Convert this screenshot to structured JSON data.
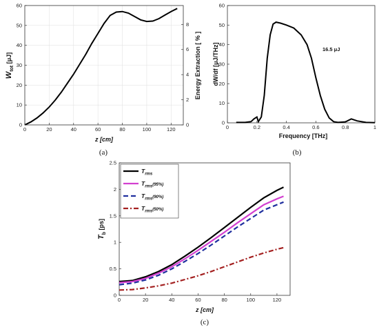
{
  "chart_data": [
    {
      "type": "line",
      "panel_label": "(a)",
      "xlabel": "z  [cm]",
      "ylabel": "W_tot [μJ]",
      "ylabel_main": "W",
      "ylabel_sub": "tot",
      "ylabel_unit": "[μJ]",
      "y2label": "Energy Extraction  [ % ]",
      "xlim": [
        0,
        130
      ],
      "ylim": [
        0,
        60
      ],
      "y2lim": [
        0,
        9.5
      ],
      "xticks": [
        "0",
        "20",
        "40",
        "60",
        "80",
        "100",
        "120"
      ],
      "yticks": [
        "0",
        "10",
        "20",
        "30",
        "40",
        "50",
        "60"
      ],
      "y2ticks": [
        "0",
        "2",
        "4",
        "6",
        "8"
      ],
      "grid": true,
      "series": [
        {
          "color": "#000000",
          "x": [
            0,
            5,
            10,
            15,
            20,
            25,
            30,
            35,
            40,
            45,
            50,
            55,
            60,
            65,
            70,
            75,
            80,
            85,
            90,
            95,
            100,
            105,
            110,
            115,
            120,
            125
          ],
          "values": [
            0,
            1.5,
            3.5,
            6,
            9,
            12.5,
            16.5,
            21,
            25.5,
            30.5,
            35.5,
            41,
            46,
            51,
            55,
            56.7,
            57,
            56.2,
            54.5,
            52.8,
            52,
            52.2,
            53.4,
            55.2,
            57,
            58.5
          ]
        }
      ]
    },
    {
      "type": "line",
      "panel_label": "(b)",
      "xlabel": "Frequency [THz]",
      "ylabel": "dW/df [μJ/THz]",
      "annotation": "16.5 μJ",
      "xlim": [
        0,
        1
      ],
      "ylim": [
        0,
        60
      ],
      "xticks": [
        "0",
        "0.2",
        "0.4",
        "0.6",
        "0.8",
        "1"
      ],
      "yticks": [
        "0",
        "10",
        "20",
        "30",
        "40",
        "50",
        "60"
      ],
      "grid": false,
      "series": [
        {
          "color": "#000000",
          "x": [
            0.06,
            0.12,
            0.16,
            0.18,
            0.2,
            0.21,
            0.23,
            0.25,
            0.27,
            0.29,
            0.31,
            0.33,
            0.36,
            0.4,
            0.45,
            0.5,
            0.54,
            0.57,
            0.6,
            0.63,
            0.66,
            0.69,
            0.72,
            0.75,
            0.8,
            0.84,
            0.88,
            0.94,
            1.0
          ],
          "values": [
            0.2,
            0.2,
            0.6,
            2,
            3,
            0.6,
            3,
            14,
            33,
            45,
            50.5,
            51.5,
            51,
            50,
            48.5,
            45,
            40,
            33,
            23,
            14,
            7,
            2.5,
            0.6,
            0.2,
            0.5,
            2,
            1,
            0.2,
            0.1
          ]
        }
      ]
    },
    {
      "type": "line",
      "panel_label": "(c)",
      "xlabel": "z  [cm]",
      "ylabel": "T_b  [ps]",
      "ylabel_main": "T",
      "ylabel_sub": "b",
      "ylabel_unit": "[ps]",
      "xlim": [
        0,
        130
      ],
      "ylim": [
        0,
        2.5
      ],
      "xticks": [
        "0",
        "20",
        "40",
        "60",
        "80",
        "100",
        "120"
      ],
      "yticks": [
        "0",
        "0.5",
        "1",
        "1.5",
        "2",
        "2.5"
      ],
      "legend": "top-left",
      "grid": false,
      "series": [
        {
          "name": "T_rms",
          "name_main": "T",
          "name_sub": "rms",
          "name_suffix": "",
          "color": "#000000",
          "dash": "",
          "x": [
            0,
            10,
            20,
            30,
            40,
            50,
            60,
            70,
            80,
            90,
            100,
            110,
            120,
            125
          ],
          "values": [
            0.26,
            0.28,
            0.35,
            0.45,
            0.58,
            0.74,
            0.91,
            1.09,
            1.28,
            1.47,
            1.66,
            1.84,
            1.98,
            2.04
          ]
        },
        {
          "name": "T_rms(95%)",
          "name_main": "T",
          "name_sub": "rms",
          "name_suffix": "(95%)",
          "color": "#d23fd0",
          "dash": "",
          "x": [
            0,
            10,
            20,
            30,
            40,
            50,
            60,
            70,
            80,
            90,
            100,
            110,
            120,
            125
          ],
          "values": [
            0.24,
            0.26,
            0.32,
            0.42,
            0.54,
            0.69,
            0.85,
            1.02,
            1.19,
            1.37,
            1.54,
            1.71,
            1.82,
            1.87
          ]
        },
        {
          "name": "T_rms(90%)",
          "name_main": "T",
          "name_sub": "rms",
          "name_suffix": "(90%)",
          "color": "#1f2f9e",
          "dash": "7,4",
          "x": [
            0,
            10,
            20,
            30,
            40,
            50,
            60,
            70,
            80,
            90,
            100,
            110,
            120,
            125
          ],
          "values": [
            0.2,
            0.23,
            0.29,
            0.38,
            0.5,
            0.64,
            0.79,
            0.95,
            1.12,
            1.29,
            1.45,
            1.61,
            1.71,
            1.76
          ]
        },
        {
          "name": "T_rms(50%)",
          "name_main": "T",
          "name_sub": "rms",
          "name_suffix": "(50%)",
          "color": "#a31f1f",
          "dash": "7,3,2,3",
          "x": [
            0,
            10,
            20,
            30,
            40,
            50,
            60,
            70,
            80,
            90,
            100,
            110,
            120,
            125
          ],
          "values": [
            0.1,
            0.11,
            0.14,
            0.18,
            0.23,
            0.3,
            0.37,
            0.45,
            0.54,
            0.63,
            0.72,
            0.8,
            0.87,
            0.9
          ]
        }
      ]
    }
  ]
}
